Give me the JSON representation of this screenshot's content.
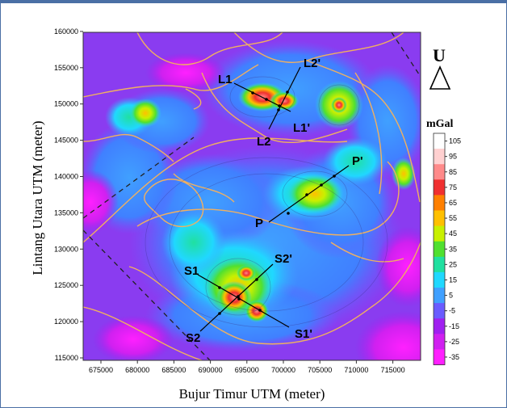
{
  "map": {
    "x_axis_title": "Bujur Timur UTM (meter)",
    "y_axis_title": "Lintang Utara UTM (meter)",
    "x_ticks": [
      "675000",
      "680000",
      "685000",
      "690000",
      "695000",
      "700000",
      "705000",
      "710000",
      "715000"
    ],
    "y_ticks": [
      "115000",
      "120000",
      "125000",
      "130000",
      "135000",
      "140000",
      "145000",
      "150000",
      "155000",
      "160000"
    ],
    "north_letter": "U",
    "unit": "mGal",
    "colorbar_labels": [
      "105",
      "95",
      "85",
      "75",
      "65",
      "55",
      "45",
      "35",
      "25",
      "15",
      "5",
      "-5",
      "-15",
      "-25",
      "-35"
    ],
    "colorbar_colors": [
      "#ffffff",
      "#ffd0d0",
      "#ff8a8a",
      "#f03030",
      "#ff8000",
      "#ffc000",
      "#c8f000",
      "#50e030",
      "#20e0a0",
      "#20d8ff",
      "#40a0ff",
      "#6a5cff",
      "#a020f0",
      "#d020f0",
      "#ff20ff"
    ],
    "profiles": [
      {
        "start": "L1",
        "end": "L1'"
      },
      {
        "start": "L2",
        "end": "L2'"
      },
      {
        "start": "P",
        "end": "P'"
      },
      {
        "start": "S1",
        "end": "S1'"
      },
      {
        "start": "S2",
        "end": "S2'"
      }
    ]
  }
}
